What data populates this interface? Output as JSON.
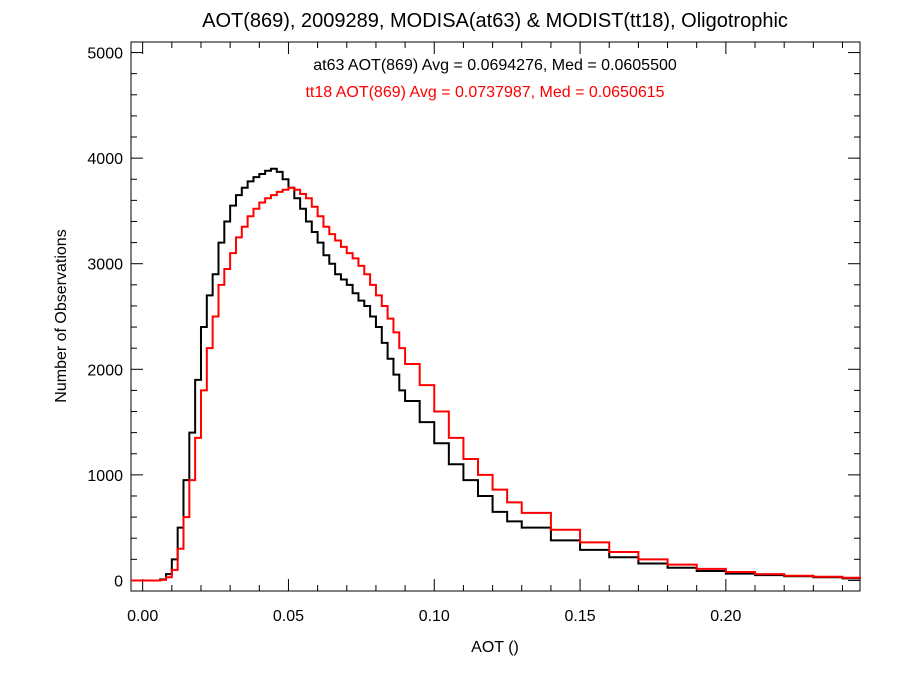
{
  "chart_data": {
    "type": "line",
    "title": "AOT(869), 2009289, MODISA(at63) & MODIST(tt18), Oligotrophic",
    "xlabel": "AOT ()",
    "ylabel": "Number of Observations",
    "xlim": [
      -0.004,
      0.246
    ],
    "ylim": [
      -100,
      5100
    ],
    "xticks": [
      0.0,
      0.05,
      0.1,
      0.15,
      0.2
    ],
    "xtick_labels": [
      "0.00",
      "0.05",
      "0.10",
      "0.15",
      "0.20"
    ],
    "yticks": [
      0,
      1000,
      2000,
      3000,
      4000,
      5000
    ],
    "ytick_labels": [
      "0",
      "1000",
      "2000",
      "3000",
      "4000",
      "5000"
    ],
    "grid": false,
    "series": [
      {
        "name": "at63",
        "color": "#000000",
        "annotation": "at63 AOT(869) Avg = 0.0694276, Med = 0.0605500",
        "x": [
          -0.004,
          0.0,
          0.004,
          0.006,
          0.008,
          0.01,
          0.012,
          0.014,
          0.016,
          0.018,
          0.02,
          0.022,
          0.024,
          0.026,
          0.028,
          0.03,
          0.032,
          0.034,
          0.036,
          0.038,
          0.04,
          0.042,
          0.044,
          0.046,
          0.048,
          0.05,
          0.052,
          0.054,
          0.056,
          0.058,
          0.06,
          0.062,
          0.064,
          0.066,
          0.068,
          0.07,
          0.072,
          0.074,
          0.076,
          0.078,
          0.08,
          0.082,
          0.084,
          0.086,
          0.088,
          0.09,
          0.095,
          0.1,
          0.105,
          0.11,
          0.115,
          0.12,
          0.125,
          0.13,
          0.14,
          0.15,
          0.16,
          0.17,
          0.18,
          0.19,
          0.2,
          0.21,
          0.22,
          0.23,
          0.24,
          0.246
        ],
        "y": [
          0,
          0,
          0,
          10,
          60,
          200,
          500,
          950,
          1400,
          1900,
          2400,
          2700,
          2900,
          3200,
          3400,
          3550,
          3650,
          3720,
          3780,
          3820,
          3850,
          3880,
          3900,
          3870,
          3800,
          3720,
          3620,
          3520,
          3400,
          3300,
          3200,
          3080,
          3000,
          2900,
          2850,
          2800,
          2720,
          2650,
          2600,
          2500,
          2400,
          2250,
          2100,
          1950,
          1800,
          1700,
          1500,
          1300,
          1100,
          950,
          800,
          650,
          560,
          500,
          380,
          290,
          220,
          160,
          120,
          90,
          65,
          50,
          40,
          30,
          20,
          15
        ]
      },
      {
        "name": "tt18",
        "color": "#ff0000",
        "annotation": "tt18 AOT(869) Avg = 0.0737987, Med = 0.0650615",
        "x": [
          -0.004,
          0.0,
          0.004,
          0.006,
          0.008,
          0.01,
          0.012,
          0.014,
          0.016,
          0.018,
          0.02,
          0.022,
          0.024,
          0.026,
          0.028,
          0.03,
          0.032,
          0.034,
          0.036,
          0.038,
          0.04,
          0.042,
          0.044,
          0.046,
          0.048,
          0.05,
          0.052,
          0.054,
          0.056,
          0.058,
          0.06,
          0.062,
          0.064,
          0.066,
          0.068,
          0.07,
          0.072,
          0.074,
          0.076,
          0.078,
          0.08,
          0.082,
          0.084,
          0.086,
          0.088,
          0.09,
          0.095,
          0.1,
          0.105,
          0.11,
          0.115,
          0.12,
          0.125,
          0.13,
          0.14,
          0.15,
          0.16,
          0.17,
          0.18,
          0.19,
          0.2,
          0.21,
          0.22,
          0.23,
          0.24,
          0.246
        ],
        "y": [
          0,
          0,
          0,
          5,
          30,
          100,
          300,
          600,
          950,
          1350,
          1800,
          2200,
          2500,
          2800,
          2950,
          3100,
          3250,
          3350,
          3450,
          3520,
          3580,
          3620,
          3650,
          3680,
          3700,
          3720,
          3700,
          3660,
          3620,
          3540,
          3450,
          3350,
          3280,
          3220,
          3160,
          3100,
          3050,
          2980,
          2900,
          2800,
          2700,
          2600,
          2480,
          2350,
          2200,
          2050,
          1850,
          1600,
          1350,
          1150,
          1000,
          860,
          740,
          640,
          480,
          360,
          270,
          200,
          150,
          110,
          80,
          60,
          45,
          35,
          25,
          18
        ]
      }
    ]
  }
}
